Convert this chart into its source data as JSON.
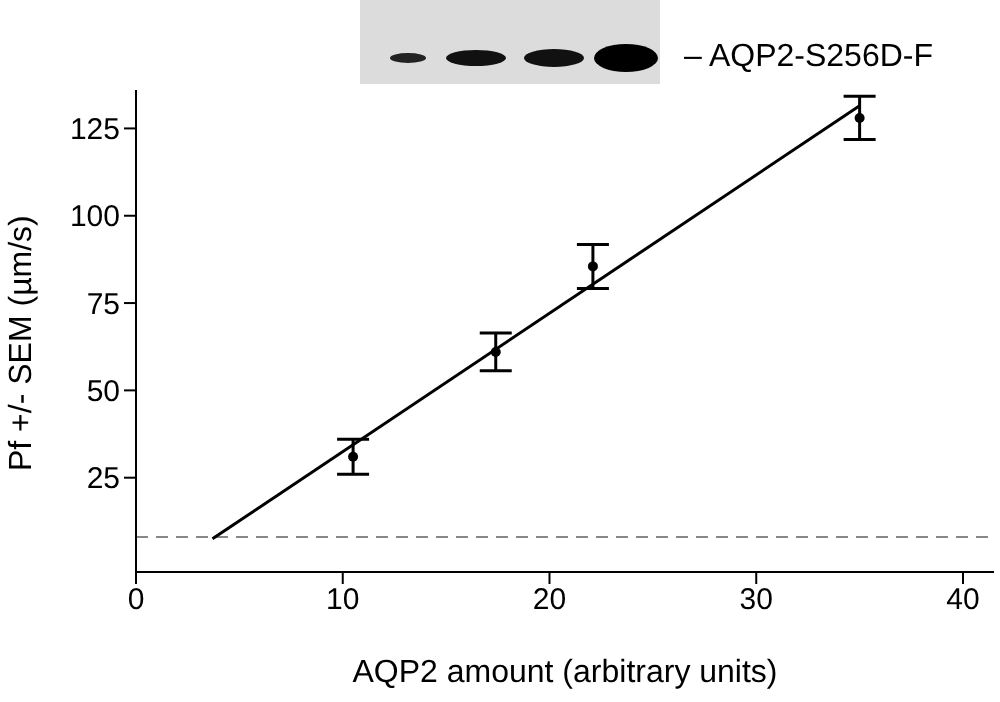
{
  "chart_data": {
    "type": "scatter",
    "xlabel": "AQP2 amount (arbitrary units)",
    "ylabel": "Pf +/- SEM (µm/s)",
    "annotations": [
      "– AQP2-S256D-F"
    ],
    "xlim": [
      0,
      41.5
    ],
    "xticks": [
      0,
      10,
      20,
      30,
      40
    ],
    "ylim": [
      -2,
      136
    ],
    "yticks": [
      25,
      50,
      75,
      100,
      125
    ],
    "grid": false,
    "legend": false,
    "series": [
      {
        "type": "scatter",
        "x": [
          10.5,
          17.4,
          22.1,
          35.0
        ],
        "values": [
          31,
          61,
          85.5,
          128
        ],
        "errors": [
          5,
          5.4,
          6.3,
          6.2
        ],
        "color": "#000000",
        "marker": "circle"
      },
      {
        "type": "line",
        "x": [
          3.7,
          35.0
        ],
        "values": [
          7.5,
          131.5
        ],
        "color": "#000000",
        "line_style": "solid",
        "marker": "none"
      }
    ],
    "ref_lines": [
      {
        "axis": "y",
        "value": 8,
        "color": "#888888",
        "line_style": "dashed"
      }
    ]
  }
}
